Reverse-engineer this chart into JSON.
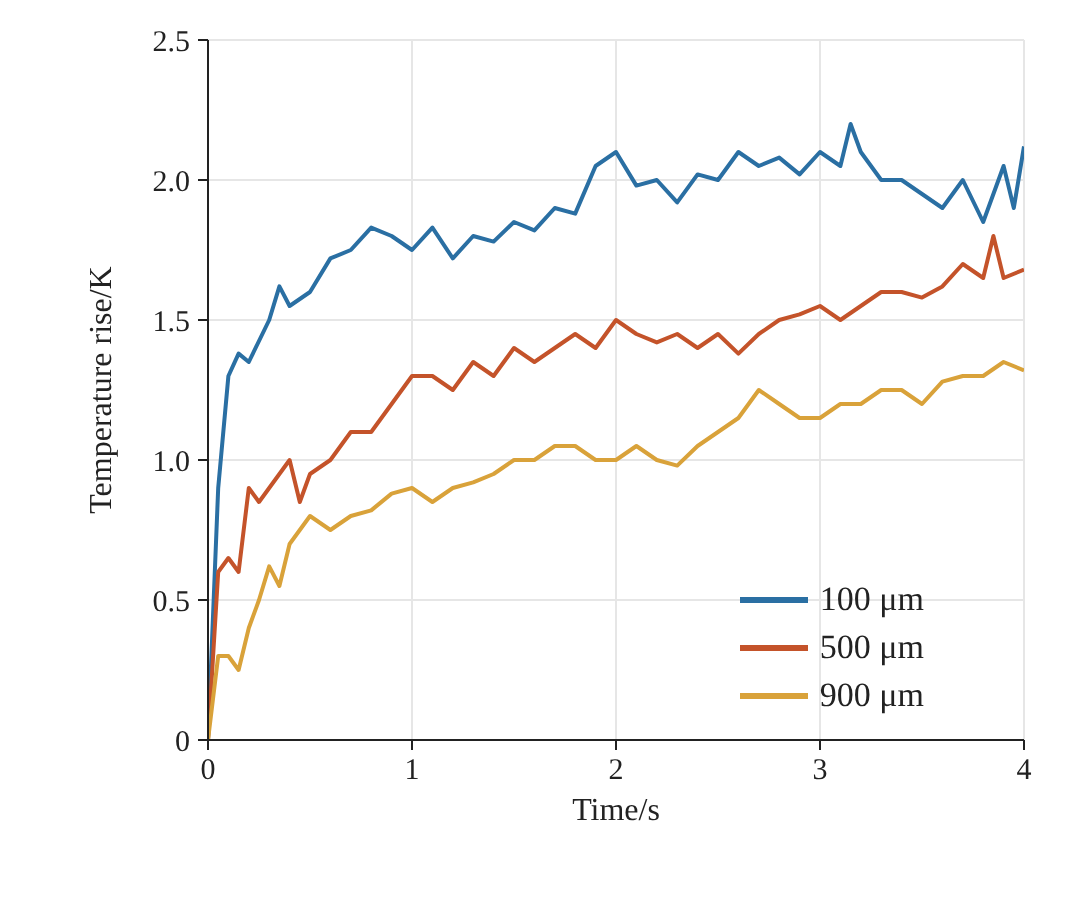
{
  "chart_data": {
    "type": "line",
    "xlabel": "Time/s",
    "ylabel": "Temperature rise/K",
    "xlim": [
      0,
      4
    ],
    "xticks": [
      0,
      1,
      2,
      3,
      4
    ],
    "ylim": [
      0,
      2.5
    ],
    "yticks": [
      0,
      0.5,
      {
        "value": 1,
        "label": "1.0"
      },
      1.5,
      {
        "value": 2,
        "label": "2.0"
      },
      2.5
    ],
    "grid": true,
    "legend": "bottom right",
    "marker": "none",
    "line_style": "solid",
    "series": [
      {
        "name": "100 μm",
        "color": "#2a6fa3",
        "x": [
          0,
          0.05,
          0.1,
          0.15,
          0.2,
          0.3,
          0.35,
          0.4,
          0.5,
          0.6,
          0.7,
          0.8,
          0.9,
          1.0,
          1.1,
          1.2,
          1.3,
          1.4,
          1.5,
          1.6,
          1.7,
          1.8,
          1.9,
          2.0,
          2.1,
          2.2,
          2.3,
          2.4,
          2.5,
          2.6,
          2.7,
          2.8,
          2.9,
          3.0,
          3.1,
          3.15,
          3.2,
          3.3,
          3.4,
          3.5,
          3.6,
          3.7,
          3.8,
          3.9,
          3.95,
          4.0
        ],
        "values": [
          0,
          0.9,
          1.3,
          1.38,
          1.35,
          1.5,
          1.62,
          1.55,
          1.6,
          1.72,
          1.75,
          1.83,
          1.8,
          1.75,
          1.83,
          1.72,
          1.8,
          1.78,
          1.85,
          1.82,
          1.9,
          1.88,
          2.05,
          2.1,
          1.98,
          2.0,
          1.92,
          2.02,
          2.0,
          2.1,
          2.05,
          2.08,
          2.02,
          2.1,
          2.05,
          2.2,
          2.1,
          2.0,
          2.0,
          1.95,
          1.9,
          2.0,
          1.85,
          2.05,
          1.9,
          2.12
        ]
      },
      {
        "name": "500 μm",
        "color": "#c4532a",
        "x": [
          0,
          0.05,
          0.1,
          0.15,
          0.2,
          0.25,
          0.3,
          0.4,
          0.45,
          0.5,
          0.6,
          0.7,
          0.8,
          0.9,
          1.0,
          1.1,
          1.2,
          1.3,
          1.4,
          1.5,
          1.6,
          1.7,
          1.8,
          1.9,
          2.0,
          2.1,
          2.2,
          2.3,
          2.4,
          2.5,
          2.6,
          2.7,
          2.8,
          2.9,
          3.0,
          3.1,
          3.2,
          3.3,
          3.4,
          3.5,
          3.6,
          3.7,
          3.8,
          3.85,
          3.9,
          4.0
        ],
        "values": [
          0,
          0.6,
          0.65,
          0.6,
          0.9,
          0.85,
          0.9,
          1.0,
          0.85,
          0.95,
          1.0,
          1.1,
          1.1,
          1.2,
          1.3,
          1.3,
          1.25,
          1.35,
          1.3,
          1.4,
          1.35,
          1.4,
          1.45,
          1.4,
          1.5,
          1.45,
          1.42,
          1.45,
          1.4,
          1.45,
          1.38,
          1.45,
          1.5,
          1.52,
          1.55,
          1.5,
          1.55,
          1.6,
          1.6,
          1.58,
          1.62,
          1.7,
          1.65,
          1.8,
          1.65,
          1.68
        ]
      },
      {
        "name": "900 μm",
        "color": "#d9a23a",
        "x": [
          0,
          0.05,
          0.1,
          0.15,
          0.2,
          0.25,
          0.3,
          0.35,
          0.4,
          0.5,
          0.6,
          0.7,
          0.8,
          0.9,
          1.0,
          1.1,
          1.2,
          1.3,
          1.4,
          1.5,
          1.6,
          1.7,
          1.8,
          1.9,
          2.0,
          2.1,
          2.2,
          2.3,
          2.4,
          2.5,
          2.6,
          2.7,
          2.8,
          2.9,
          3.0,
          3.1,
          3.2,
          3.3,
          3.4,
          3.5,
          3.6,
          3.7,
          3.8,
          3.9,
          4.0
        ],
        "values": [
          0,
          0.3,
          0.3,
          0.25,
          0.4,
          0.5,
          0.62,
          0.55,
          0.7,
          0.8,
          0.75,
          0.8,
          0.82,
          0.88,
          0.9,
          0.85,
          0.9,
          0.92,
          0.95,
          1.0,
          1.0,
          1.05,
          1.05,
          1.0,
          1.0,
          1.05,
          1.0,
          0.98,
          1.05,
          1.1,
          1.15,
          1.25,
          1.2,
          1.15,
          1.15,
          1.2,
          1.2,
          1.25,
          1.25,
          1.2,
          1.28,
          1.3,
          1.3,
          1.35,
          1.32
        ]
      }
    ]
  }
}
